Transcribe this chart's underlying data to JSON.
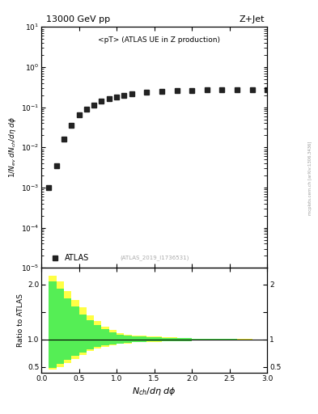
{
  "title_left": "13000 GeV pp",
  "title_right": "Z+Jet",
  "main_label": "<pT> (ATLAS UE in Z production)",
  "atlas_label": "ATLAS",
  "ref_label": "(ATLAS_2019_I1736531)",
  "watermark": "mcplots.cern.ch [arXiv:1306.3436]",
  "data_x": [
    0.1,
    0.2,
    0.3,
    0.4,
    0.5,
    0.6,
    0.7,
    0.8,
    0.9,
    1.0,
    1.1,
    1.2,
    1.4,
    1.6,
    1.8,
    2.0,
    2.2,
    2.4,
    2.6,
    2.8,
    3.0
  ],
  "data_y": [
    0.001,
    0.0035,
    0.016,
    0.035,
    0.065,
    0.09,
    0.115,
    0.14,
    0.16,
    0.18,
    0.2,
    0.215,
    0.235,
    0.25,
    0.26,
    0.265,
    0.27,
    0.272,
    0.273,
    0.273,
    0.274
  ],
  "xlim": [
    0.0,
    3.0
  ],
  "ylim_main": [
    1e-05,
    10.0
  ],
  "ylim_ratio": [
    0.4,
    2.3
  ],
  "ratio_yticks": [
    0.5,
    1.0,
    1.5,
    2.0
  ],
  "ratio_yticklabels_right": [
    "0.5",
    "1",
    "",
    "2"
  ],
  "ratio_band_x_edges": [
    0.1,
    0.2,
    0.3,
    0.4,
    0.5,
    0.6,
    0.7,
    0.8,
    0.9,
    1.0,
    1.1,
    1.2,
    1.4,
    1.6,
    1.8,
    2.0,
    2.2,
    2.4,
    2.6,
    2.8,
    3.0
  ],
  "ratio_band1_ylo": [
    0.45,
    0.5,
    0.58,
    0.65,
    0.72,
    0.79,
    0.84,
    0.87,
    0.9,
    0.92,
    0.93,
    0.95,
    0.96,
    0.97,
    0.975,
    0.98,
    0.985,
    0.99,
    0.99,
    0.99
  ],
  "ratio_band1_yhi": [
    2.15,
    2.05,
    1.88,
    1.72,
    1.58,
    1.44,
    1.33,
    1.24,
    1.17,
    1.12,
    1.09,
    1.07,
    1.05,
    1.04,
    1.03,
    1.02,
    1.015,
    1.01,
    1.01,
    1.005
  ],
  "ratio_band2_ylo": [
    0.48,
    0.56,
    0.63,
    0.7,
    0.77,
    0.82,
    0.86,
    0.89,
    0.91,
    0.93,
    0.94,
    0.96,
    0.965,
    0.97,
    0.975,
    0.98,
    0.985,
    0.99,
    0.99,
    0.995
  ],
  "ratio_band2_yhi": [
    2.05,
    1.92,
    1.75,
    1.6,
    1.46,
    1.35,
    1.26,
    1.19,
    1.13,
    1.09,
    1.07,
    1.05,
    1.04,
    1.03,
    1.025,
    1.015,
    1.01,
    1.007,
    1.005,
    1.003
  ],
  "color_yellow": "#ffff44",
  "color_green": "#55ee55",
  "marker_color": "#222222",
  "marker_size": 4.5,
  "bg_color": "#ffffff"
}
